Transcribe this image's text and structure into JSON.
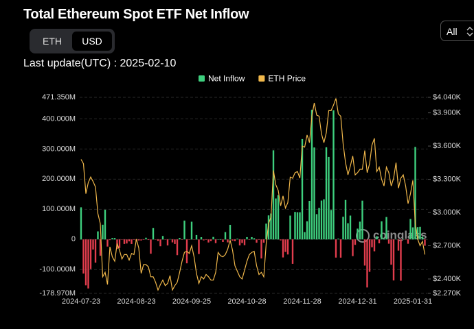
{
  "header": {
    "title": "Total Ethereum Spot ETF Net Inflow",
    "toggle": [
      "ETH",
      "USD"
    ],
    "last_update": "Last update(UTC) : 2025-02-10",
    "range_select": "All"
  },
  "chart_data": {
    "type": "bar",
    "watermark": "coinglass",
    "grid": true,
    "legend": "top",
    "categories": [
      "2024-07-23",
      null,
      null,
      null,
      null,
      null,
      null,
      null,
      null,
      null,
      null,
      null,
      null,
      null,
      null,
      null,
      null,
      null,
      null,
      null,
      null,
      null,
      null,
      "2024-08-23",
      null,
      null,
      null,
      null,
      null,
      null,
      null,
      null,
      null,
      null,
      null,
      null,
      null,
      null,
      null,
      null,
      null,
      null,
      null,
      null,
      null,
      null,
      "2024-09-25",
      null,
      null,
      null,
      null,
      null,
      null,
      null,
      null,
      null,
      null,
      null,
      null,
      null,
      null,
      null,
      null,
      null,
      null,
      null,
      null,
      null,
      null,
      "2024-10-28",
      null,
      null,
      null,
      null,
      null,
      null,
      null,
      null,
      null,
      null,
      null,
      null,
      null,
      null,
      null,
      null,
      null,
      null,
      null,
      null,
      null,
      null,
      "2024-11-28",
      null,
      null,
      null,
      null,
      null,
      null,
      null,
      null,
      null,
      null,
      null,
      null,
      null,
      null,
      null,
      null,
      null,
      null,
      null,
      null,
      null,
      null,
      "2024-12-31",
      null,
      null,
      null,
      null,
      null,
      null,
      null,
      null,
      null,
      null,
      null,
      null,
      null,
      null,
      null,
      null,
      null,
      null,
      null,
      null,
      null,
      null,
      "2025-01-31",
      null,
      null,
      null,
      null,
      null
    ],
    "series": [
      {
        "name": "Net Inflow",
        "type": "bar",
        "color": "#3ecf7e",
        "negative_color": "#e23d4d",
        "values": [
          106.6,
          -113.3,
          -152.4,
          -162.7,
          -98.3,
          -33.7,
          -77.2,
          26.7,
          -54.3,
          48.8,
          98.4,
          -23.7,
          -2.0,
          4.9,
          4.9,
          -31.0,
          -28.2,
          -0.8,
          -15.0,
          -13.5,
          -6.5,
          -15.1,
          -0.9,
          -5.8,
          -3.4,
          -3.5,
          -0.7,
          5.8,
          -1.8,
          -47.4,
          37.5,
          -0.2,
          -5.2,
          -22.6,
          11.4,
          -0.1,
          -20.1,
          1.1,
          -9.8,
          -15.1,
          -52.2,
          5.2,
          -0.9,
          62.5,
          -79.3,
          -0.1,
          58.7,
          -0.1,
          14.5,
          -48.5,
          7.4,
          -3.2,
          -0.1,
          -10.2,
          -5.9,
          8.2,
          -12.4,
          0,
          0,
          -8.5,
          24.2,
          -9.8,
          48.4,
          -4.4,
          -6.1,
          2.3,
          -20.0,
          -11.9,
          -19.2,
          7.6,
          -1.1,
          7.6,
          4.0,
          -10.9,
          -0.3,
          -63.2,
          -10.9,
          52.3,
          79.7,
          85.9,
          295.5,
          135.9,
          146.9,
          -3.2,
          -59.8,
          -41.6,
          -50.0,
          79.0,
          -81.0,
          91.2,
          90.3,
          90.1,
          332.9,
          24.2,
          60.0,
          128.0,
          430.0,
          305.0,
          83.8,
          104.4,
          129.0,
          133.0,
          305.7,
          273.7,
          97.6,
          428.0,
          -60.3,
          2.5,
          -60.5,
          75.1,
          130.8,
          53.6,
          79.1,
          -55.4,
          -18.0,
          35.9,
          58.9,
          128.7,
          -86.8,
          -159.4,
          -107.5,
          -26.0,
          -39.4,
          10.5,
          -13.0,
          59.8,
          3.6,
          74.3,
          -14.3,
          -83.9,
          -136.2,
          1.2,
          -37.1,
          -136.9,
          1.3,
          -1.0,
          -14.4,
          67.8,
          40.0,
          306.9,
          41.0,
          42.0,
          9.2,
          -21.0
        ]
      },
      {
        "name": "ETH Price",
        "type": "line",
        "axis": "y2",
        "color": "#f1b84b",
        "values": [
          3480,
          3440,
          3170,
          3270,
          3320,
          3280,
          3230,
          2990,
          2900,
          2420,
          2460,
          2350,
          2690,
          2600,
          2560,
          2720,
          2660,
          2580,
          2620,
          2620,
          2570,
          2630,
          2620,
          2760,
          2680,
          2450,
          2530,
          2530,
          2510,
          2420,
          2420,
          2370,
          2300,
          2350,
          2390,
          2340,
          2360,
          2430,
          2300,
          2340,
          2370,
          2460,
          2560,
          2640,
          2650,
          2630,
          2700,
          2600,
          2450,
          2360,
          2420,
          2400,
          2440,
          2420,
          2390,
          2390,
          2460,
          2640,
          2610,
          2600,
          2620,
          2670,
          2750,
          2660,
          2520,
          2470,
          2420,
          2400,
          2480,
          2560,
          2620,
          2640,
          2650,
          2520,
          2440,
          2460,
          2420,
          2720,
          2900,
          2960,
          3380,
          3250,
          3200,
          3060,
          3150,
          3040,
          3090,
          3320,
          3310,
          3360,
          3370,
          3310,
          3600,
          3590,
          3700,
          3630,
          3870,
          3990,
          3880,
          3870,
          3710,
          3630,
          3720,
          3920,
          3920,
          3970,
          4030,
          3890,
          3870,
          3620,
          3450,
          3340,
          3420,
          3510,
          3340,
          3360,
          3390,
          3390,
          3560,
          3360,
          3440,
          3610,
          3670,
          3370,
          3410,
          3300,
          3240,
          3410,
          3360,
          3240,
          3310,
          3450,
          3220,
          3310,
          3340,
          3240,
          3080,
          3170,
          3290,
          2900,
          2760,
          2700,
          2740,
          2620
        ]
      }
    ],
    "ylim": [
      -178.97,
      471.35
    ],
    "yticks": [
      {
        "value": -178.97,
        "label": "-178.970M"
      },
      {
        "value": -100,
        "label": "-100.000M"
      },
      0,
      {
        "value": 100,
        "label": "100.000M"
      },
      {
        "value": 200,
        "label": "200.000M"
      },
      {
        "value": 300,
        "label": "300.000M"
      },
      {
        "value": 400,
        "label": "400.000M"
      },
      {
        "value": 471.35,
        "label": "471.350M"
      }
    ],
    "y2lim": [
      2270,
      4040
    ],
    "y2ticks": [
      {
        "value": 2270,
        "label": "$2.270K"
      },
      {
        "value": 2400,
        "label": "$2.400K"
      },
      {
        "value": 2700,
        "label": "$2.700K"
      },
      {
        "value": 3000,
        "label": "$3.000K"
      },
      {
        "value": 3300,
        "label": "$3.300K"
      },
      {
        "value": 3600,
        "label": "$3.600K"
      },
      {
        "value": 3900,
        "label": "$3.900K"
      },
      {
        "value": 4040,
        "label": "$4.040K"
      }
    ]
  }
}
